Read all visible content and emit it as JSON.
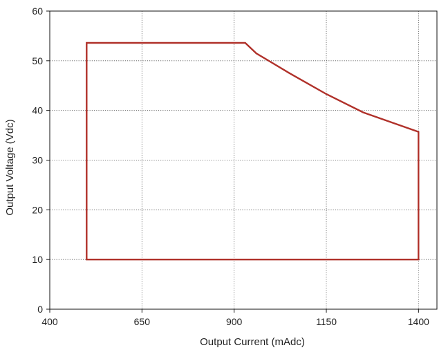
{
  "chart_data": {
    "type": "line",
    "title": "",
    "xlabel": "Output Current (mAdc)",
    "ylabel": "Output Voltage (Vdc)",
    "xlim": [
      400,
      1450
    ],
    "ylim": [
      0,
      60
    ],
    "xticks": [
      400,
      650,
      900,
      1150,
      1400
    ],
    "yticks": [
      0,
      10,
      20,
      30,
      40,
      50,
      60
    ],
    "grid": true,
    "grid_style": "dotted",
    "series": [
      {
        "color": "#b0312a",
        "closed": true,
        "x": [
          500,
          500,
          930,
          960,
          1050,
          1150,
          1250,
          1400,
          1400,
          500
        ],
        "y": [
          10,
          53.6,
          53.6,
          51.5,
          47.5,
          43.3,
          39.6,
          35.7,
          10,
          10
        ]
      }
    ]
  }
}
